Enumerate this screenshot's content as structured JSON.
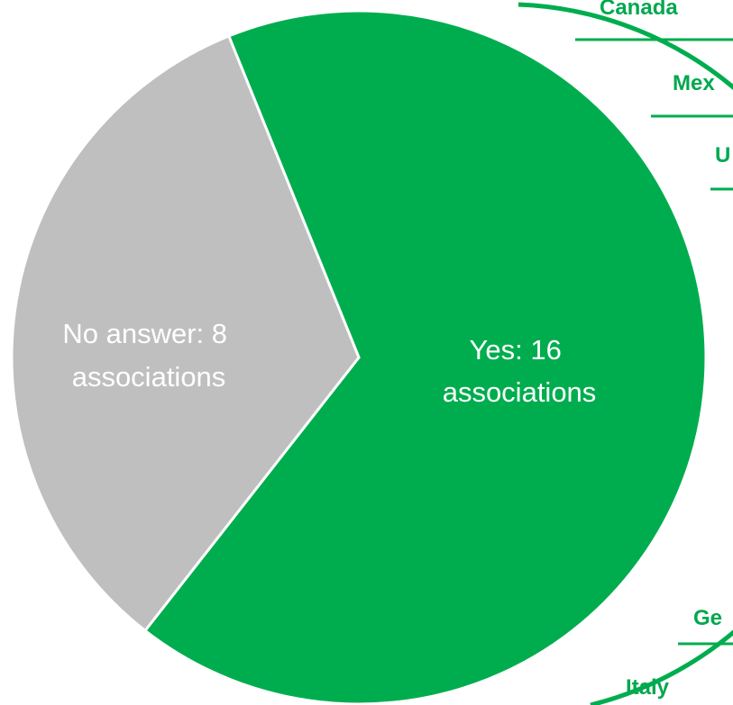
{
  "chart_data": {
    "type": "pie",
    "slices": [
      {
        "label_line1": "Yes: 16",
        "label_line2": "associations",
        "value": 16,
        "color": "#00ad4e"
      },
      {
        "label_line1": "No answer: 8",
        "label_line2": "associations",
        "value": 8,
        "color": "#bfbfbf"
      }
    ],
    "countries": [
      "Canada",
      "Mex",
      "U",
      "Ge",
      "Italy"
    ],
    "accent_color": "#00ad4e"
  }
}
